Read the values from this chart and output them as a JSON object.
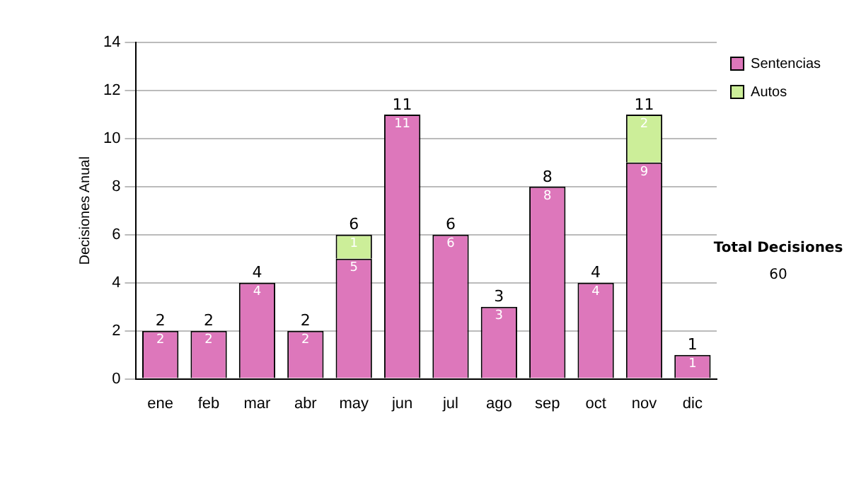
{
  "chart_data": {
    "type": "bar",
    "stacked": true,
    "ylabel": "Decisiones Anual",
    "categories": [
      "ene",
      "feb",
      "mar",
      "abr",
      "may",
      "jun",
      "jul",
      "ago",
      "sep",
      "oct",
      "nov",
      "dic"
    ],
    "series": [
      {
        "name": "Sentencias",
        "color": "#dd77bb",
        "values": [
          2,
          2,
          4,
          2,
          5,
          11,
          6,
          3,
          8,
          4,
          9,
          1
        ]
      },
      {
        "name": "Autos",
        "color": "#ccee99",
        "values": [
          null,
          null,
          null,
          null,
          1,
          null,
          null,
          null,
          null,
          null,
          2,
          null
        ]
      }
    ],
    "totals": [
      "2",
      "2",
      "4",
      "2",
      "6",
      "11",
      "6",
      "3",
      "8",
      "4",
      "11",
      "1"
    ],
    "data_labels": true,
    "ylim": [
      0,
      14
    ],
    "yticks": [
      0,
      2,
      4,
      6,
      8,
      10,
      12,
      14
    ],
    "grid": "y",
    "legend": "right",
    "annotations": [
      "Total Decisiones",
      "60"
    ]
  }
}
